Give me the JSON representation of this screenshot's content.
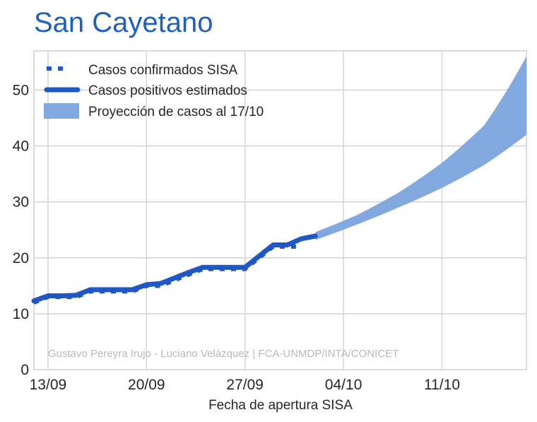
{
  "chart_data": {
    "type": "line",
    "title": "San Cayetano",
    "xlabel": "Fecha de apertura SISA",
    "ylabel": "",
    "x_tick_labels": [
      "13/09",
      "20/09",
      "27/09",
      "04/10",
      "11/10"
    ],
    "y_ticks": [
      0,
      10,
      20,
      30,
      40,
      50
    ],
    "ylim": [
      0,
      57
    ],
    "xlim": [
      "2020-09-12",
      "2020-10-17"
    ],
    "grid": true,
    "legend_position": "top-left",
    "credit": "Gustavo Pereyra Irujo - Luciano Velázquez | FCA-UNMDP/INTA/CONICET",
    "series": [
      {
        "name": "Casos confirmados SISA",
        "style": "dotted",
        "color": "#1f57c3",
        "points": [
          [
            "2020-09-12",
            12
          ],
          [
            "2020-09-13",
            13
          ],
          [
            "2020-09-14",
            13
          ],
          [
            "2020-09-15",
            13
          ],
          [
            "2020-09-16",
            14
          ],
          [
            "2020-09-17",
            14
          ],
          [
            "2020-09-18",
            14
          ],
          [
            "2020-09-19",
            14
          ],
          [
            "2020-09-20",
            15
          ],
          [
            "2020-09-21",
            15
          ],
          [
            "2020-09-22",
            16
          ],
          [
            "2020-09-23",
            17
          ],
          [
            "2020-09-24",
            18
          ],
          [
            "2020-09-25",
            18
          ],
          [
            "2020-09-26",
            18
          ],
          [
            "2020-09-27",
            18
          ],
          [
            "2020-09-28",
            20
          ],
          [
            "2020-09-29",
            22
          ],
          [
            "2020-09-30",
            22
          ],
          [
            "2020-10-01",
            22
          ]
        ]
      },
      {
        "name": "Casos positivos estimados",
        "style": "solid",
        "color": "#1f57c3",
        "points": [
          [
            "2020-09-12",
            12.3
          ],
          [
            "2020-09-13",
            13.2
          ],
          [
            "2020-09-14",
            13.2
          ],
          [
            "2020-09-15",
            13.3
          ],
          [
            "2020-09-16",
            14.3
          ],
          [
            "2020-09-17",
            14.3
          ],
          [
            "2020-09-18",
            14.3
          ],
          [
            "2020-09-19",
            14.3
          ],
          [
            "2020-09-20",
            15.2
          ],
          [
            "2020-09-21",
            15.4
          ],
          [
            "2020-09-22",
            16.4
          ],
          [
            "2020-09-23",
            17.4
          ],
          [
            "2020-09-24",
            18.3
          ],
          [
            "2020-09-25",
            18.3
          ],
          [
            "2020-09-26",
            18.3
          ],
          [
            "2020-09-27",
            18.3
          ],
          [
            "2020-09-28",
            20.3
          ],
          [
            "2020-09-29",
            22.3
          ],
          [
            "2020-09-30",
            22.3
          ],
          [
            "2020-10-01",
            23.4
          ],
          [
            "2020-10-02",
            23.9
          ]
        ]
      },
      {
        "name": "Proyección de casos al 17/10",
        "style": "band",
        "color": "#82a8e0",
        "points": [
          [
            "2020-10-02",
            23.2,
            24.6
          ],
          [
            "2020-10-05",
            26.0,
            27.7
          ],
          [
            "2020-10-08",
            29.1,
            31.8
          ],
          [
            "2020-10-11",
            32.5,
            37.0
          ],
          [
            "2020-10-14",
            36.6,
            43.7
          ],
          [
            "2020-10-17",
            42.0,
            56.0
          ]
        ]
      }
    ]
  }
}
